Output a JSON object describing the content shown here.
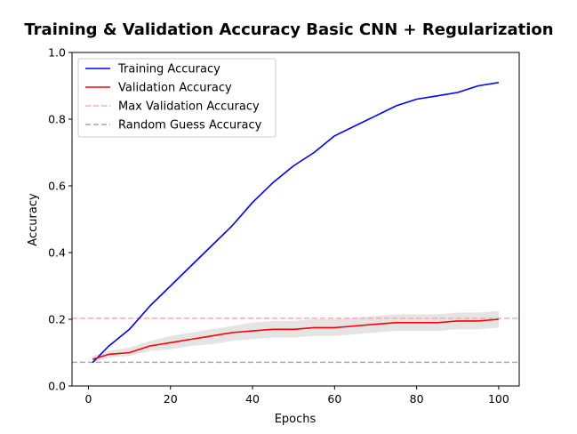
{
  "chart_data": {
    "type": "line",
    "title": "Training & Validation Accuracy Basic CNN + Regularization",
    "xlabel": "Epochs",
    "ylabel": "Accuracy",
    "xlim": [
      -4,
      105
    ],
    "ylim": [
      0,
      1.0
    ],
    "x_ticks": [
      0,
      20,
      40,
      60,
      80,
      100
    ],
    "y_ticks": [
      0.0,
      0.2,
      0.4,
      0.6,
      0.8,
      1.0
    ],
    "x_tick_labels": [
      "0",
      "20",
      "40",
      "60",
      "80",
      "100"
    ],
    "y_tick_labels": [
      "0.0",
      "0.2",
      "0.4",
      "0.6",
      "0.8",
      "1.0"
    ],
    "grid": false,
    "legend_placement": "top-left",
    "x": [
      1,
      5,
      10,
      15,
      20,
      25,
      30,
      35,
      40,
      45,
      50,
      55,
      60,
      65,
      70,
      75,
      80,
      85,
      90,
      95,
      100
    ],
    "series": [
      {
        "name": "Training Accuracy",
        "color": "#0000ff",
        "style": "solid",
        "values": [
          0.07,
          0.12,
          0.17,
          0.24,
          0.3,
          0.36,
          0.42,
          0.48,
          0.55,
          0.61,
          0.66,
          0.7,
          0.75,
          0.78,
          0.81,
          0.84,
          0.86,
          0.87,
          0.88,
          0.9,
          0.91
        ]
      },
      {
        "name": "Validation Accuracy",
        "color": "#ff0000",
        "style": "solid",
        "values": [
          0.08,
          0.095,
          0.1,
          0.12,
          0.13,
          0.14,
          0.15,
          0.16,
          0.165,
          0.17,
          0.17,
          0.175,
          0.175,
          0.18,
          0.185,
          0.19,
          0.19,
          0.19,
          0.195,
          0.195,
          0.2
        ],
        "band_lower": [
          0.07,
          0.085,
          0.09,
          0.105,
          0.11,
          0.12,
          0.125,
          0.135,
          0.14,
          0.145,
          0.145,
          0.15,
          0.15,
          0.155,
          0.16,
          0.165,
          0.165,
          0.165,
          0.17,
          0.17,
          0.175
        ],
        "band_upper": [
          0.09,
          0.105,
          0.115,
          0.135,
          0.15,
          0.16,
          0.17,
          0.18,
          0.19,
          0.195,
          0.195,
          0.2,
          0.2,
          0.205,
          0.21,
          0.215,
          0.215,
          0.215,
          0.22,
          0.22,
          0.225
        ]
      }
    ],
    "reference_lines": [
      {
        "name": "Max Validation Accuracy",
        "y": 0.203,
        "color": "#ffaaaa",
        "style": "dashed"
      },
      {
        "name": "Random Guess Accuracy",
        "y": 0.071,
        "color": "#aaaaaa",
        "style": "dashed"
      }
    ],
    "band_color": "#d9d9d9"
  }
}
